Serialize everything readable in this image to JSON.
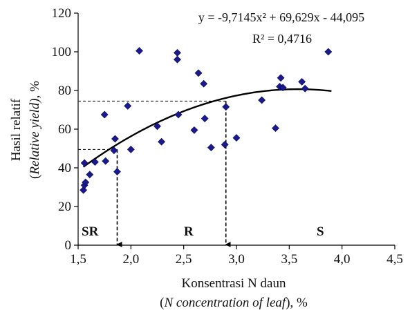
{
  "chart_data": {
    "type": "scatter",
    "title": "",
    "xlabel": "Konsentrasi N daun",
    "xlabel_italic": "N concentration of leaf",
    "xlabel_suffix": "), %",
    "xlabel_prefix": "(",
    "ylabel": "Hasil relatif",
    "ylabel_italic": "Relative yield)",
    "ylabel_suffix": ", %",
    "ylabel_prefix": "(",
    "xlim": [
      1.5,
      4.5
    ],
    "ylim": [
      0,
      120
    ],
    "x_ticks": [
      "1,5",
      "2,0",
      "2,5",
      "3,0",
      "3,5",
      "4,0",
      "4,5"
    ],
    "y_ticks": [
      "0",
      "20",
      "40",
      "60",
      "80",
      "100",
      "120"
    ],
    "grid": false,
    "legend": "none",
    "point_color": "#1a1a8c",
    "line_color": "#000000",
    "equation": "y = -9,7145x² + 69,629x - 44,095",
    "r_squared": "R² = 0,4716",
    "trendline": {
      "a": -9.7145,
      "b": 69.629,
      "c": -44.095,
      "x_range": [
        1.55,
        3.9
      ]
    },
    "critical_points": [
      {
        "x": 1.87,
        "y": 49.5
      },
      {
        "x": 2.9,
        "y": 74.5
      }
    ],
    "regions": [
      "SR",
      "R",
      "S"
    ],
    "points": [
      [
        1.55,
        28.5
      ],
      [
        1.56,
        31
      ],
      [
        1.57,
        32.5
      ],
      [
        1.56,
        42.5
      ],
      [
        1.61,
        36.5
      ],
      [
        1.66,
        43
      ],
      [
        1.75,
        67.5
      ],
      [
        1.76,
        43.5
      ],
      [
        1.84,
        49
      ],
      [
        1.85,
        55
      ],
      [
        1.87,
        38
      ],
      [
        1.97,
        72
      ],
      [
        2.0,
        49.5
      ],
      [
        2.08,
        100.5
      ],
      [
        2.25,
        61.5
      ],
      [
        2.29,
        53.5
      ],
      [
        2.44,
        99.5
      ],
      [
        2.44,
        96
      ],
      [
        2.45,
        67.5
      ],
      [
        2.6,
        59.5
      ],
      [
        2.64,
        89
      ],
      [
        2.69,
        83.5
      ],
      [
        2.7,
        65.5
      ],
      [
        2.76,
        50.5
      ],
      [
        2.89,
        52
      ],
      [
        2.9,
        71.5
      ],
      [
        3.0,
        55.5
      ],
      [
        3.24,
        75
      ],
      [
        3.37,
        60.5
      ],
      [
        3.41,
        82
      ],
      [
        3.42,
        86.5
      ],
      [
        3.44,
        81.5
      ],
      [
        3.62,
        84.5
      ],
      [
        3.65,
        81
      ],
      [
        3.87,
        100
      ]
    ]
  }
}
